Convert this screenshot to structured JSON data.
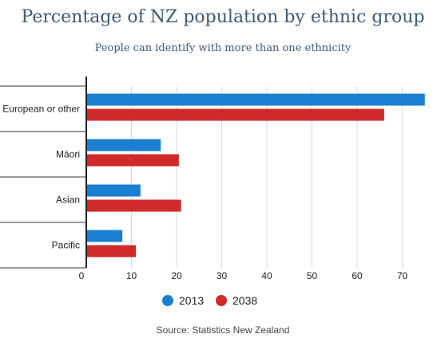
{
  "chart_data": {
    "type": "bar",
    "orientation": "horizontal",
    "title": "Percentage of NZ population by ethnic group",
    "subtitle": "People can identify with more than one ethnicity",
    "categories": [
      "European or other",
      "Māori",
      "Asian",
      "Pacific"
    ],
    "series": [
      {
        "name": "2013",
        "color": "#1a7fd1",
        "values": [
          75,
          16.5,
          12,
          8
        ]
      },
      {
        "name": "2038",
        "color": "#d12a2a",
        "values": [
          66,
          20.5,
          21,
          11
        ]
      }
    ],
    "x_ticks": [
      0,
      10,
      20,
      30,
      40,
      50,
      60,
      70
    ],
    "xlim": [
      0,
      75
    ],
    "grid": true,
    "legend_position": "bottom",
    "source": "Source: Statistics New Zealand"
  }
}
